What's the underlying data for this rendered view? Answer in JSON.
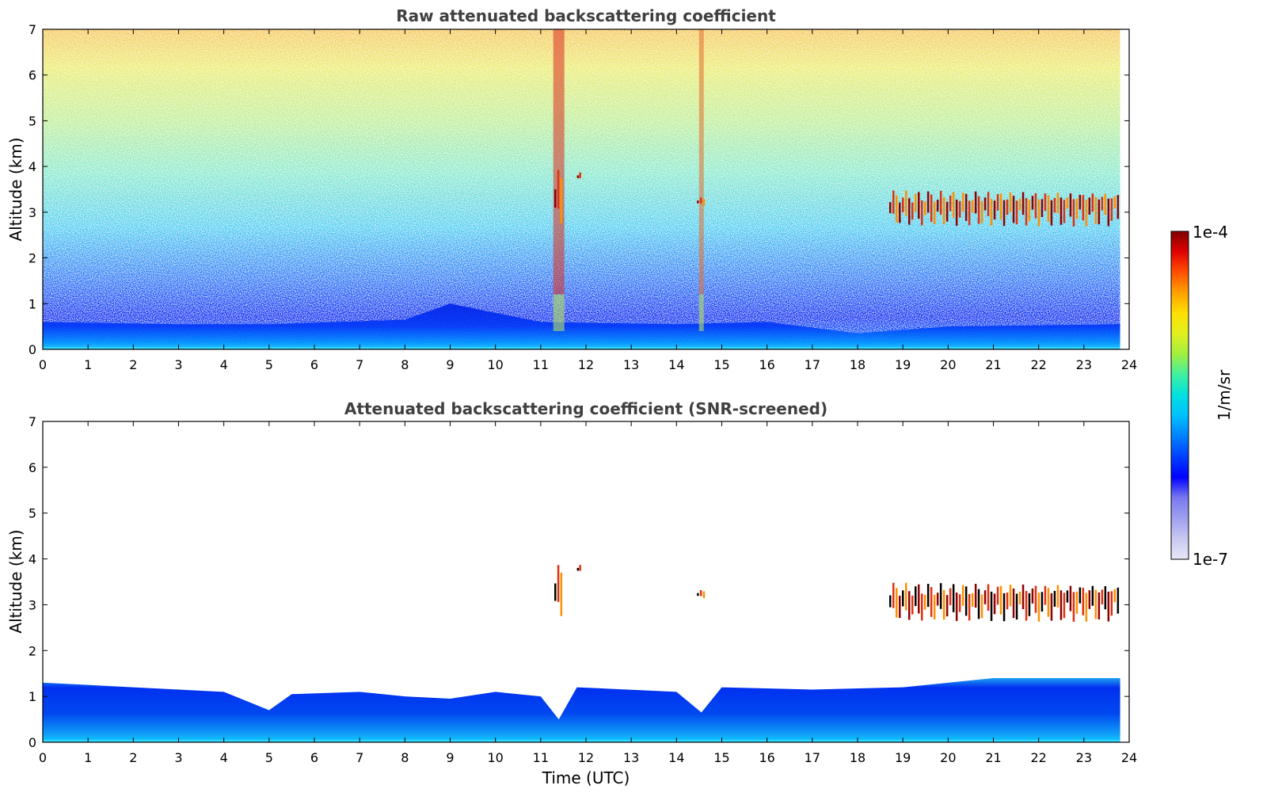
{
  "chart_data": [
    {
      "type": "heatmap",
      "title": "Raw attenuated backscattering coefficient",
      "xlabel": "",
      "ylabel": "Altitude (km)",
      "xlim": [
        0,
        24
      ],
      "ylim": [
        0,
        7
      ],
      "xticks": [
        "0",
        "1",
        "2",
        "3",
        "4",
        "5",
        "6",
        "7",
        "8",
        "9",
        "10",
        "11",
        "12",
        "13",
        "14",
        "15",
        "16",
        "17",
        "18",
        "19",
        "20",
        "21",
        "22",
        "23",
        "24"
      ],
      "yticks": [
        "0",
        "1",
        "2",
        "3",
        "4",
        "5",
        "6",
        "7"
      ],
      "data_end_hour": 23.8,
      "boundary_layer_top_km": [
        [
          0,
          0.6
        ],
        [
          3,
          0.55
        ],
        [
          5,
          0.55
        ],
        [
          8,
          0.65
        ],
        [
          9,
          1.0
        ],
        [
          11,
          0.6
        ],
        [
          14,
          0.55
        ],
        [
          16,
          0.6
        ],
        [
          18,
          0.35
        ],
        [
          20,
          0.5
        ],
        [
          23.8,
          0.55
        ]
      ],
      "noisy_columns_h": [
        11.4,
        14.55
      ],
      "clouds": [
        {
          "start_h": 11.3,
          "end_h": 11.5,
          "alt_km_low": 2.8,
          "alt_km_high": 3.8
        },
        {
          "start_h": 11.8,
          "end_h": 11.9,
          "alt_km_low": 3.7,
          "alt_km_high": 3.85
        },
        {
          "start_h": 14.45,
          "end_h": 14.65,
          "alt_km_low": 3.15,
          "alt_km_high": 3.3
        },
        {
          "start_h": 18.7,
          "end_h": 23.8,
          "alt_km_low": 2.8,
          "alt_km_high": 3.4
        }
      ]
    },
    {
      "type": "heatmap",
      "title": "Attenuated backscattering coefficient (SNR-screened)",
      "xlabel": "Time (UTC)",
      "ylabel": "Altitude (km)",
      "xlim": [
        0,
        24
      ],
      "ylim": [
        0,
        7
      ],
      "xticks": [
        "0",
        "1",
        "2",
        "3",
        "4",
        "5",
        "6",
        "7",
        "8",
        "9",
        "10",
        "11",
        "12",
        "13",
        "14",
        "15",
        "16",
        "17",
        "18",
        "19",
        "20",
        "21",
        "22",
        "23",
        "24"
      ],
      "yticks": [
        "0",
        "1",
        "2",
        "3",
        "4",
        "5",
        "6",
        "7"
      ],
      "data_end_hour": 23.8,
      "screened_layer_top_km": [
        [
          0,
          1.3
        ],
        [
          2,
          1.2
        ],
        [
          4,
          1.1
        ],
        [
          5,
          0.7
        ],
        [
          5.5,
          1.05
        ],
        [
          7,
          1.1
        ],
        [
          8,
          1.0
        ],
        [
          9,
          0.95
        ],
        [
          10,
          1.1
        ],
        [
          11,
          1.0
        ],
        [
          11.4,
          0.5
        ],
        [
          11.8,
          1.2
        ],
        [
          14,
          1.1
        ],
        [
          14.55,
          0.65
        ],
        [
          15,
          1.2
        ],
        [
          17,
          1.15
        ],
        [
          19,
          1.2
        ],
        [
          21,
          1.4
        ],
        [
          23.8,
          1.4
        ]
      ],
      "clouds": [
        {
          "start_h": 11.3,
          "end_h": 11.5,
          "alt_km_low": 2.8,
          "alt_km_high": 3.75
        },
        {
          "start_h": 11.8,
          "end_h": 11.9,
          "alt_km_low": 3.7,
          "alt_km_high": 3.85
        },
        {
          "start_h": 14.45,
          "end_h": 14.65,
          "alt_km_low": 3.15,
          "alt_km_high": 3.3
        },
        {
          "start_h": 18.7,
          "end_h": 23.8,
          "alt_km_low": 2.75,
          "alt_km_high": 3.4
        }
      ]
    }
  ],
  "colorbar": {
    "max_label": "1e-4",
    "min_label": "1e-7",
    "unit_label": "1/m/sr",
    "colors": [
      "#e8e8f8",
      "#c8c8f0",
      "#a0a0f0",
      "#7878f0",
      "#0000ff",
      "#0040ff",
      "#0080ff",
      "#00c0ff",
      "#00e0e0",
      "#40f0a0",
      "#a0f040",
      "#e0f020",
      "#ffe000",
      "#ffa000",
      "#ff5000",
      "#e00000",
      "#800000"
    ]
  }
}
